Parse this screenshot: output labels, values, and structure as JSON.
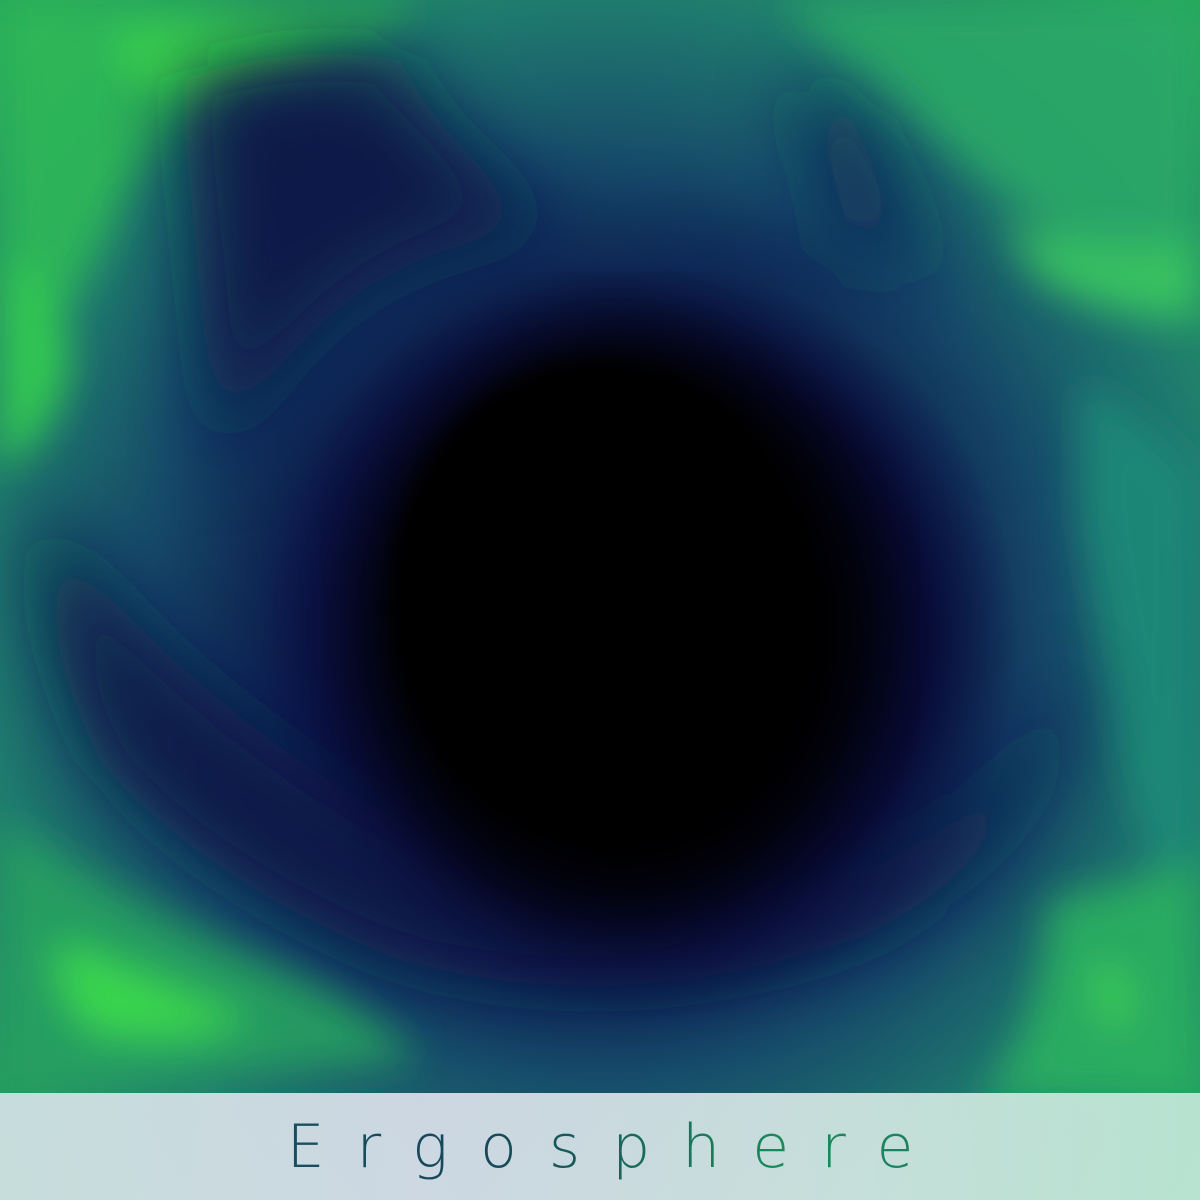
{
  "album": {
    "title": "Ergosphere"
  },
  "colors": {
    "void": "#000000",
    "deep_navy": "#08083a",
    "teal": "#1f7a6e",
    "green": "#2cc84a",
    "band": "#d4e0e4",
    "title_text": "#1a5a62"
  }
}
